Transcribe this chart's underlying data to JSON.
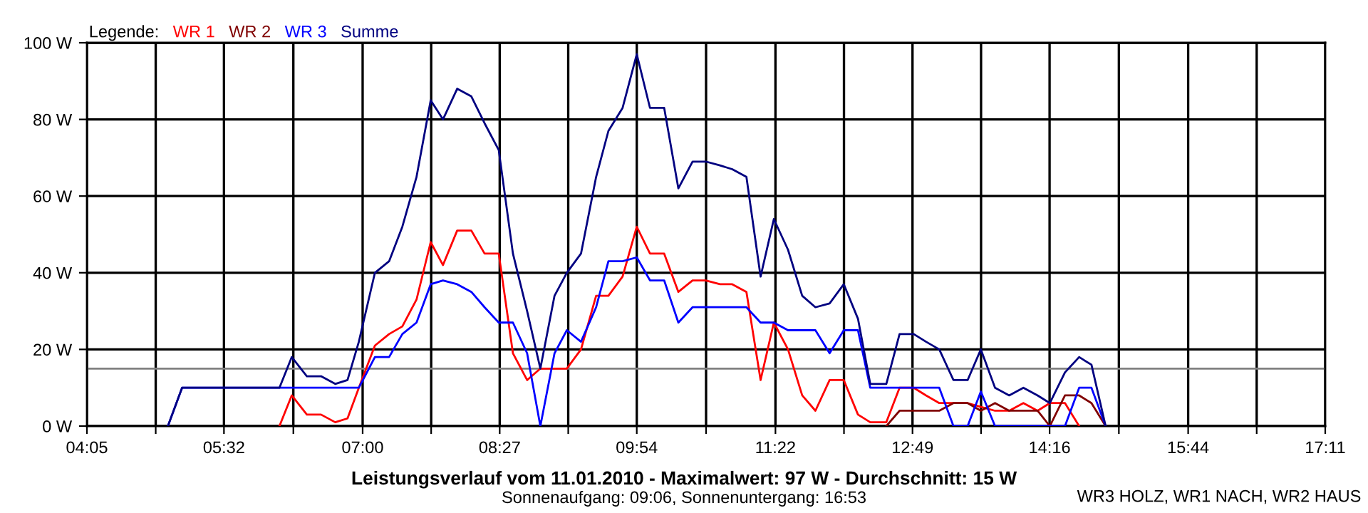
{
  "chart_data": {
    "type": "line",
    "title": "Leistungsverlauf vom 11.01.2010 - Maximalwert: 97 W - Durchschnitt: 15 W",
    "subtitle": "Sonnenaufgang: 09:06, Sonnenuntergang: 16:53",
    "annotations": [
      "WR3 HOLZ, WR1 NACH, WR2 HAUS"
    ],
    "legend_title": "Legende:",
    "legend": "top left",
    "grid": true,
    "marker": "none",
    "line_style": "solid",
    "x": [
      4.94,
      5.09,
      6.12,
      6.25,
      6.41,
      6.56,
      6.71,
      6.84,
      6.96,
      7.13,
      7.28,
      7.42,
      7.57,
      7.72,
      7.85,
      8.0,
      8.15,
      8.29,
      8.44,
      8.59,
      8.74,
      8.88,
      9.03,
      9.16,
      9.31,
      9.47,
      9.6,
      9.75,
      9.9,
      10.04,
      10.19,
      10.34,
      10.49,
      10.63,
      10.78,
      10.91,
      11.06,
      11.21,
      11.35,
      11.5,
      11.65,
      11.79,
      11.94,
      12.09,
      12.24,
      12.37,
      12.54,
      12.68,
      12.83,
      12.96,
      13.1,
      13.25,
      13.4,
      13.54,
      13.69,
      13.84,
      13.99,
      14.14,
      14.27,
      14.43,
      14.58,
      14.71,
      14.86
    ],
    "series": [
      {
        "name": "WR 1",
        "color": "#ff0000",
        "values": [
          null,
          null,
          0,
          8,
          3,
          3,
          1,
          2,
          10,
          21,
          24,
          26,
          33,
          48,
          42,
          51,
          51,
          45,
          45,
          19,
          12,
          15,
          15,
          15,
          20,
          34,
          34,
          39,
          52,
          45,
          45,
          35,
          38,
          38,
          37,
          37,
          35,
          12,
          27,
          20,
          8,
          4,
          12,
          12,
          3,
          1,
          1,
          10,
          10,
          8,
          6,
          6,
          6,
          5,
          4,
          4,
          6,
          4,
          6,
          6,
          0,
          null,
          null
        ]
      },
      {
        "name": "WR 2",
        "color": "#800000",
        "values": [
          null,
          null,
          null,
          null,
          null,
          null,
          null,
          null,
          null,
          null,
          null,
          null,
          null,
          null,
          null,
          null,
          null,
          null,
          null,
          null,
          null,
          null,
          null,
          null,
          null,
          null,
          null,
          null,
          null,
          null,
          null,
          null,
          null,
          null,
          null,
          null,
          null,
          null,
          null,
          null,
          null,
          null,
          null,
          null,
          null,
          null,
          0,
          4,
          4,
          4,
          4,
          6,
          6,
          4,
          6,
          4,
          4,
          4,
          0,
          8,
          8,
          6,
          0
        ]
      },
      {
        "name": "WR 3",
        "color": "#0000ff",
        "values": [
          0,
          10,
          10,
          10,
          10,
          10,
          10,
          10,
          10,
          18,
          18,
          24,
          27,
          37,
          38,
          37,
          35,
          31,
          27,
          27,
          19,
          0,
          19,
          25,
          22,
          31,
          43,
          43,
          44,
          38,
          38,
          27,
          31,
          31,
          31,
          31,
          31,
          27,
          27,
          25,
          25,
          25,
          19,
          25,
          25,
          10,
          10,
          10,
          10,
          10,
          10,
          0,
          0,
          9,
          0,
          0,
          0,
          0,
          0,
          0,
          10,
          10,
          0
        ]
      },
      {
        "name": "Summe",
        "color": "#000080",
        "values": [
          0,
          10,
          10,
          18,
          13,
          13,
          11,
          12,
          22,
          40,
          43,
          52,
          65,
          85,
          80,
          88,
          86,
          79,
          72,
          45,
          30,
          15,
          34,
          40,
          45,
          65,
          77,
          83,
          97,
          83,
          83,
          62,
          69,
          69,
          68,
          67,
          65,
          39,
          54,
          46,
          34,
          31,
          32,
          37,
          28,
          11,
          11,
          24,
          24,
          22,
          20,
          12,
          12,
          20,
          10,
          8,
          10,
          8,
          6,
          14,
          18,
          16,
          0
        ]
      }
    ],
    "xlim": [
      4.0833,
      17.1833
    ],
    "xticks": [
      {
        "value": 4.0833,
        "label": "04:05"
      },
      {
        "value": 4.811,
        "label": null
      },
      {
        "value": 5.533,
        "label": "05:32"
      },
      {
        "value": 6.267,
        "label": null
      },
      {
        "value": 7.0,
        "label": "07:00"
      },
      {
        "value": 7.725,
        "label": null
      },
      {
        "value": 8.45,
        "label": "08:27"
      },
      {
        "value": 9.175,
        "label": null
      },
      {
        "value": 9.9,
        "label": "09:54"
      },
      {
        "value": 10.633,
        "label": null
      },
      {
        "value": 11.367,
        "label": "11:22"
      },
      {
        "value": 12.092,
        "label": null
      },
      {
        "value": 12.817,
        "label": "12:49"
      },
      {
        "value": 13.542,
        "label": null
      },
      {
        "value": 14.267,
        "label": "14:16"
      },
      {
        "value": 15.0,
        "label": null
      },
      {
        "value": 15.733,
        "label": "15:44"
      },
      {
        "value": 16.458,
        "label": null
      },
      {
        "value": 17.1833,
        "label": "17:11"
      }
    ],
    "ylim": [
      0,
      100
    ],
    "yticks": [
      {
        "value": 0,
        "label": "0 W"
      },
      {
        "value": 20,
        "label": "20 W"
      },
      {
        "value": 40,
        "label": "40 W"
      },
      {
        "value": 60,
        "label": "60 W"
      },
      {
        "value": 80,
        "label": "80 W"
      },
      {
        "value": 100,
        "label": "100 W"
      }
    ],
    "ref_lines": [
      {
        "axis": "y",
        "value": 15,
        "color": "#808080"
      }
    ]
  }
}
